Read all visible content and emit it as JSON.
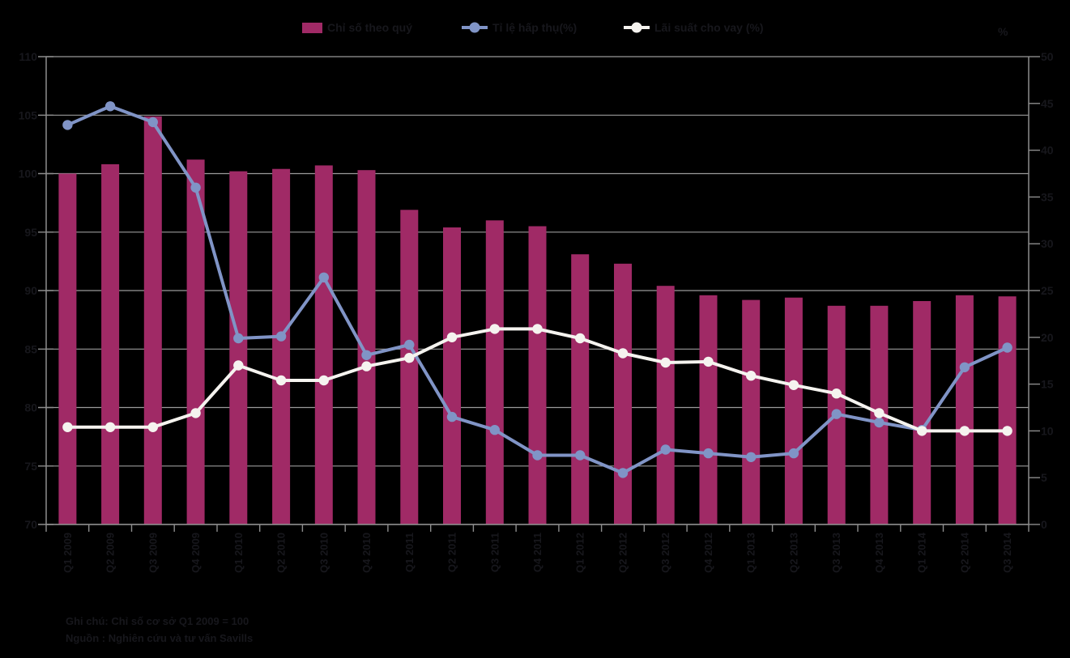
{
  "footnotes": {
    "note": "Ghi chú: Chỉ số cơ sở Q1 2009 = 100",
    "source": "Nguồn : Nghiên cứu và tư vấn Savills"
  },
  "chart_data": {
    "type": "bar+line combo",
    "categories": [
      "Q1 2009",
      "Q2 2009",
      "Q3 2009",
      "Q4 2009",
      "Q1 2010",
      "Q2 2010",
      "Q3 2010",
      "Q4 2010",
      "Q1 2011",
      "Q2 2011",
      "Q3 2011",
      "Q4 2011",
      "Q1 2012",
      "Q2 2012",
      "Q3 2012",
      "Q4 2012",
      "Q1 2013",
      "Q2 2013",
      "Q3 2013",
      "Q4 2013",
      "Q1 2014",
      "Q2 2014",
      "Q3 2014"
    ],
    "series": [
      {
        "name": "Chỉ số theo quý",
        "type": "bar",
        "axis": "left",
        "color": "#A02A66",
        "values": [
          100.0,
          100.8,
          104.9,
          101.2,
          100.2,
          100.4,
          100.7,
          100.3,
          96.9,
          95.4,
          96.0,
          95.5,
          93.1,
          92.3,
          90.4,
          89.6,
          89.2,
          89.4,
          88.7,
          88.7,
          89.1,
          89.6,
          89.5
        ]
      },
      {
        "name": "Tỉ lệ hấp thụ(%)",
        "type": "line",
        "axis": "right",
        "color": "#8094C6",
        "values": [
          42.7,
          44.7,
          43.0,
          36.0,
          19.9,
          20.1,
          26.4,
          18.1,
          19.2,
          11.5,
          10.1,
          7.4,
          7.4,
          5.5,
          8.0,
          7.6,
          7.2,
          7.6,
          11.8,
          10.9,
          10.1,
          16.8,
          18.9
        ]
      },
      {
        "name": "Lãi suất cho vay (%)",
        "type": "line",
        "axis": "right",
        "color": "#F5F3EF",
        "values": [
          10.4,
          10.4,
          10.4,
          11.9,
          17.0,
          15.4,
          15.4,
          16.9,
          17.8,
          20.0,
          20.9,
          20.9,
          19.9,
          18.3,
          17.3,
          17.4,
          15.9,
          14.9,
          14.0,
          11.9,
          10.0,
          10.0,
          10.0
        ]
      }
    ],
    "left_axis": {
      "min": 70,
      "max": 110,
      "step": 5,
      "tick_labels": [
        "70",
        "75",
        "80",
        "85",
        "90",
        "95",
        "100",
        "105",
        "110"
      ]
    },
    "right_axis": {
      "min": 0,
      "max": 50,
      "step": 5,
      "unit": "%",
      "tick_labels": [
        "0",
        "5",
        "10",
        "15",
        "20",
        "25",
        "30",
        "35",
        "40",
        "45",
        "50"
      ]
    },
    "grid": true,
    "legend_position": "top",
    "x_tick_label_rotation": -90,
    "grid_color": "#9a9a9a",
    "axis_color": "#8d8d8d",
    "text_color": "#17171c",
    "background_color": "#000000"
  }
}
